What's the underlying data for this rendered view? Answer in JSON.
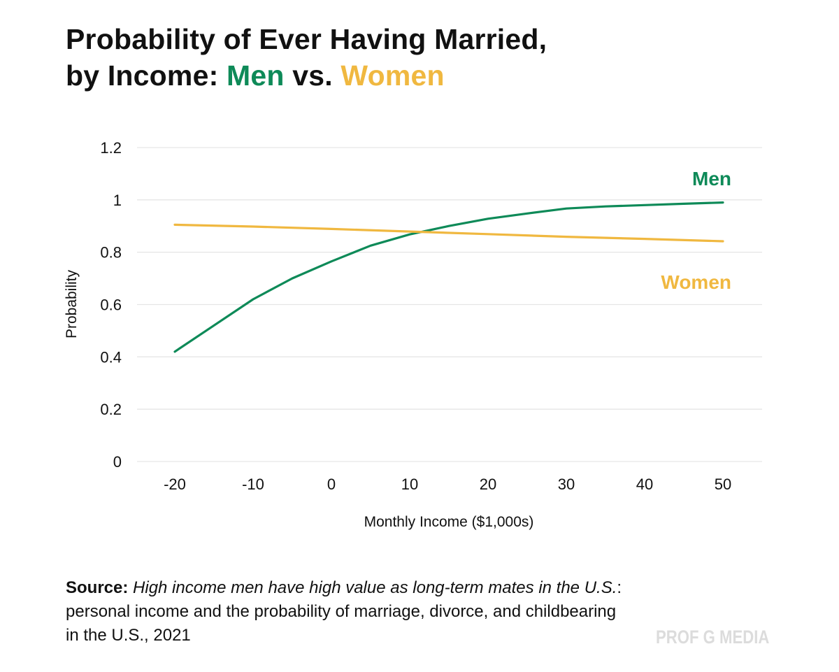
{
  "title": {
    "line1": "Probability of Ever Having Married,",
    "prefix": "by Income: ",
    "men": "Men",
    "vs": " vs. ",
    "women": "Women"
  },
  "colors": {
    "men": "#0e8a58",
    "women": "#f0b840",
    "grid": "#e6e6e6",
    "text": "#111111",
    "watermark": "#dcdcdc"
  },
  "chart_data": {
    "type": "line",
    "title": "Probability of Ever Having Married, by Income: Men vs. Women",
    "xlabel": "Monthly Income ($1,000s)",
    "ylabel": "Probability",
    "xlim": [
      -25,
      55
    ],
    "ylim": [
      0,
      1.2
    ],
    "x_ticks": [
      -20,
      -10,
      0,
      10,
      20,
      30,
      40,
      50
    ],
    "x_tick_labels": [
      "-20",
      "-10",
      "0",
      "10",
      "20",
      "30",
      "40",
      "50"
    ],
    "y_ticks": [
      0,
      0.2,
      0.4,
      0.6,
      0.8,
      1,
      1.2
    ],
    "y_tick_labels": [
      "0",
      "0.2",
      "0.4",
      "0.6",
      "0.8",
      "1",
      "1.2"
    ],
    "grid": true,
    "series": [
      {
        "name": "Men",
        "label": "Men",
        "color": "#0e8a58",
        "x": [
          -20,
          -15,
          -10,
          -5,
          0,
          5,
          10,
          15,
          20,
          25,
          30,
          35,
          40,
          45,
          50
        ],
        "values": [
          0.42,
          0.52,
          0.62,
          0.7,
          0.765,
          0.825,
          0.868,
          0.9,
          0.928,
          0.948,
          0.967,
          0.975,
          0.98,
          0.985,
          0.99
        ]
      },
      {
        "name": "Women",
        "label": "Women",
        "color": "#f0b840",
        "x": [
          -20,
          -10,
          0,
          10,
          20,
          30,
          40,
          50
        ],
        "values": [
          0.905,
          0.898,
          0.889,
          0.879,
          0.869,
          0.859,
          0.851,
          0.842
        ]
      }
    ]
  },
  "source": {
    "label": "Source:",
    "italic": "High income men have high value as long-term mates in the U.S.",
    "rest": ": personal income and the probability of marriage, divorce, and childbearing in the U.S., 2021"
  },
  "watermark": "PROF G MEDIA"
}
